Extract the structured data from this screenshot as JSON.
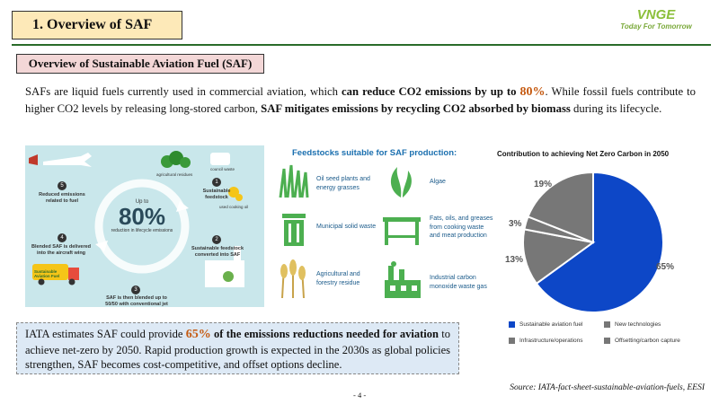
{
  "header": {
    "title": "1. Overview of SAF",
    "logo_mark": "VNGE",
    "logo_tagline": "Today For Tomorrow"
  },
  "subtitle": "Overview of Sustainable Aviation Fuel (SAF)",
  "intro": {
    "p1": "SAFs are liquid fuels currently used in commercial aviation, which ",
    "b1": "can reduce CO2 emissions by up to ",
    "accent": "80%",
    "p2": ". While fossil fuels contribute to higher CO2 levels by releasing long-stored carbon, ",
    "b2": "SAF mitigates emissions by recycling CO2 absorbed by biomass",
    "p3": " during its lifecycle."
  },
  "lifecycle": {
    "center_up": "Up to",
    "center_value": "80%",
    "center_sub": "reduction in lifecycle emissions",
    "steps": [
      {
        "num": "1",
        "text": "Sustainable feedstock"
      },
      {
        "num": "2",
        "text": "Sustainable feedstock converted into SAF"
      },
      {
        "num": "3",
        "text": "SAF is then blended up to 50/50 with conventional jet fuel"
      },
      {
        "num": "4",
        "text": "Blended SAF is delivered into the aircraft wing"
      },
      {
        "num": "5",
        "text": "Reduced emissions related to fuel"
      }
    ],
    "labels": {
      "agricultural": "agricultural residues",
      "council": "council waste",
      "cooking": "used cooking oil",
      "truck": "Sustainable Aviation Fuel"
    }
  },
  "feedstocks": {
    "title": "Feedstocks suitable for SAF production:",
    "items": [
      {
        "text": "Oil seed plants and energy grasses",
        "icon": "grass-icon"
      },
      {
        "text": "Algae",
        "icon": "algae-icon"
      },
      {
        "text": "Municipal solid waste",
        "icon": "trash-bin-icon"
      },
      {
        "text": "Fats, oils, and greases from cooking waste and meat production",
        "icon": "table-icon"
      },
      {
        "text": "Agricultural and forestry residue",
        "icon": "wheat-icon"
      },
      {
        "text": "Industrial carbon monoxide waste gas",
        "icon": "factory-icon"
      }
    ]
  },
  "chart_data": {
    "type": "pie",
    "title": "Contribution to achieving Net Zero Carbon in 2050",
    "series": [
      {
        "name": "Sustainable aviation fuel",
        "value": 65,
        "label": "65%",
        "color": "#0d47c7"
      },
      {
        "name": "Offsetting/carbon capture",
        "value": 13,
        "label": "13%",
        "color": "#777777"
      },
      {
        "name": "Infrastructure/operations",
        "value": 3,
        "label": "3%",
        "color": "#777777"
      },
      {
        "name": "New technologies",
        "value": 19,
        "label": "19%",
        "color": "#777777"
      }
    ],
    "legend": [
      {
        "name": "Sustainable aviation fuel",
        "color": "#0d47c7"
      },
      {
        "name": "New technologies",
        "color": "#777777"
      },
      {
        "name": "Infrastructure/operations",
        "color": "#777777"
      },
      {
        "name": "Offsetting/carbon capture",
        "color": "#777777"
      }
    ],
    "legend_position": "bottom"
  },
  "callout": {
    "p1": "IATA estimates SAF could provide ",
    "accent": "65%",
    "b1": " of the emissions reductions needed for aviation",
    "p2": " to achieve net-zero by 2050. Rapid production growth is expected in the 2030s as global policies strengthen, SAF becomes cost-competitive, and offset options decline."
  },
  "source": "Source: IATA-fact-sheet-sustainable-aviation-fuels, EESI",
  "page_number": "- 4 -"
}
